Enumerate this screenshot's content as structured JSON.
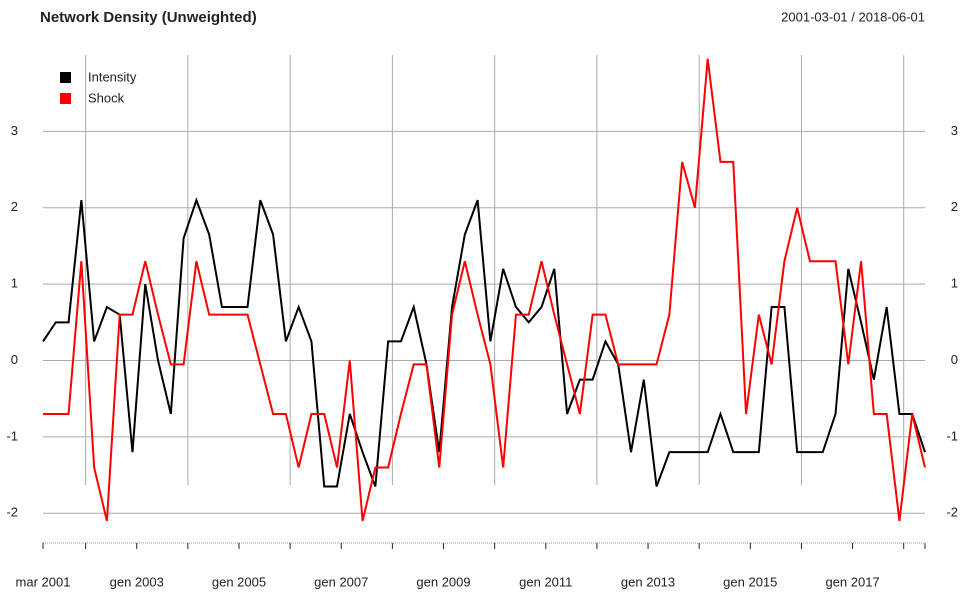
{
  "chart_data": {
    "type": "line",
    "title": "Network Density (Unweighted)",
    "subtitle": "2001-03-01 / 2018-06-01",
    "x": [
      "2001-03",
      "2001-06",
      "2001-09",
      "2001-12",
      "2002-03",
      "2002-06",
      "2002-09",
      "2002-12",
      "2003-03",
      "2003-06",
      "2003-09",
      "2003-12",
      "2004-03",
      "2004-06",
      "2004-09",
      "2004-12",
      "2005-03",
      "2005-06",
      "2005-09",
      "2005-12",
      "2006-03",
      "2006-06",
      "2006-09",
      "2006-12",
      "2007-03",
      "2007-06",
      "2007-09",
      "2007-12",
      "2008-03",
      "2008-06",
      "2008-09",
      "2008-12",
      "2009-03",
      "2009-06",
      "2009-09",
      "2009-12",
      "2010-03",
      "2010-06",
      "2010-09",
      "2010-12",
      "2011-03",
      "2011-06",
      "2011-09",
      "2011-12",
      "2012-03",
      "2012-06",
      "2012-09",
      "2012-12",
      "2013-03",
      "2013-06",
      "2013-09",
      "2013-12",
      "2014-03",
      "2014-06",
      "2014-09",
      "2014-12",
      "2015-03",
      "2015-06",
      "2015-09",
      "2015-12",
      "2016-03",
      "2016-06",
      "2016-09",
      "2016-12",
      "2017-03",
      "2017-06",
      "2017-09",
      "2017-12",
      "2018-03",
      "2018-06"
    ],
    "series": [
      {
        "name": "Intensity",
        "color": "#000000",
        "values": [
          0.25,
          0.5,
          0.5,
          2.1,
          0.25,
          0.7,
          0.6,
          -1.2,
          1.0,
          0.0,
          -0.7,
          1.6,
          2.1,
          1.65,
          0.7,
          0.7,
          0.7,
          2.1,
          1.65,
          0.25,
          0.7,
          0.25,
          -1.65,
          -1.65,
          -0.7,
          -1.2,
          -1.65,
          0.25,
          0.25,
          0.7,
          -0.05,
          -1.2,
          0.7,
          1.65,
          2.1,
          0.25,
          1.2,
          0.7,
          0.5,
          0.7,
          1.2,
          -0.7,
          -0.25,
          -0.25,
          0.25,
          -0.05,
          -1.2,
          -0.25,
          -1.65,
          -1.2,
          -1.2,
          -1.2,
          -1.2,
          -0.7,
          -1.2,
          -1.2,
          -1.2,
          0.7,
          0.7,
          -1.2,
          -1.2,
          -1.2,
          -0.7,
          1.2,
          0.5,
          -0.25,
          0.7,
          -0.7,
          -0.7,
          -1.2
        ]
      },
      {
        "name": "Shock",
        "color": "#ff0000",
        "values": [
          -0.7,
          -0.7,
          -0.7,
          1.3,
          -1.4,
          -2.1,
          0.6,
          0.6,
          1.3,
          0.6,
          -0.05,
          -0.05,
          1.3,
          0.6,
          0.6,
          0.6,
          0.6,
          -0.05,
          -0.7,
          -0.7,
          -1.4,
          -0.7,
          -0.7,
          -1.4,
          0.0,
          -2.1,
          -1.4,
          -1.4,
          -0.7,
          -0.05,
          -0.05,
          -1.4,
          0.6,
          1.3,
          0.6,
          -0.05,
          -1.4,
          0.6,
          0.6,
          1.3,
          0.6,
          -0.05,
          -0.7,
          0.6,
          0.6,
          -0.05,
          -0.05,
          -0.05,
          -0.05,
          0.6,
          2.6,
          2.0,
          3.95,
          2.6,
          2.6,
          -0.7,
          0.6,
          -0.05,
          1.3,
          2.0,
          1.3,
          1.3,
          1.3,
          -0.05,
          1.3,
          -0.7,
          -0.7,
          -2.1,
          -0.7,
          -1.4
        ]
      }
    ],
    "xlim": [
      "2001-03",
      "2018-06"
    ],
    "xticks": [
      {
        "value": "2001-03",
        "label": "mar 2001"
      },
      {
        "value": "2003-01",
        "label": "gen 2003"
      },
      {
        "value": "2005-01",
        "label": "gen 2005"
      },
      {
        "value": "2007-01",
        "label": "gen 2007"
      },
      {
        "value": "2009-01",
        "label": "gen 2009"
      },
      {
        "value": "2011-01",
        "label": "gen 2011"
      },
      {
        "value": "2013-01",
        "label": "gen 2013"
      },
      {
        "value": "2015-01",
        "label": "gen 2015"
      },
      {
        "value": "2017-01",
        "label": "gen 2017"
      }
    ],
    "xgrid": [
      "2002-01",
      "2004-01",
      "2006-01",
      "2008-01",
      "2010-01",
      "2012-01",
      "2014-01",
      "2016-01",
      "2018-01"
    ],
    "ylim": [
      -2.35,
      4
    ],
    "yticks": [
      -2,
      -1,
      0,
      1,
      2,
      3
    ],
    "grid": true,
    "legend": "topleft"
  }
}
